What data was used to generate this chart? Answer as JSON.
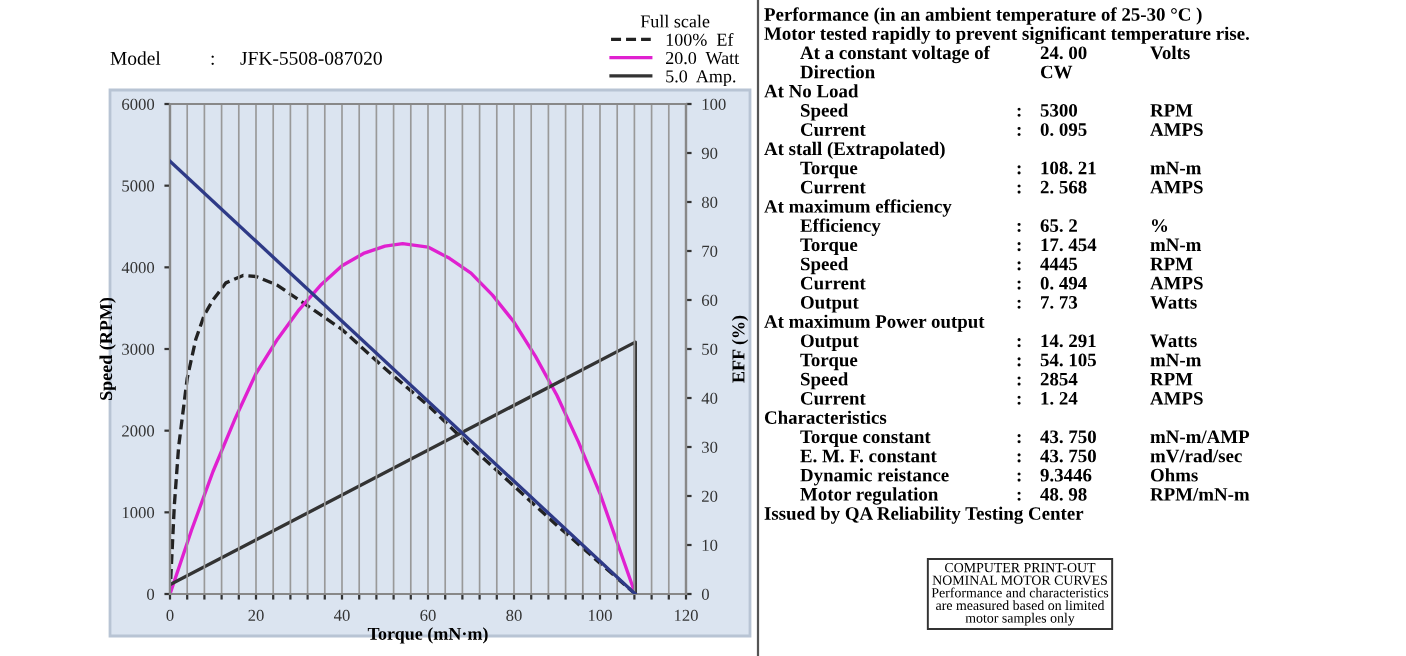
{
  "chart_data": {
    "type": "line",
    "subtitle": "Model\t:\tJFK-5508-087020",
    "xlabel": "Torque (mN·m)",
    "ylabel": "Speed (RPM)",
    "y2label": "EFF (%)",
    "legend_title": "Full scale",
    "legend": "top right",
    "grid": "x",
    "xlim": [
      0,
      120
    ],
    "xticks": [
      0,
      {
        "value": 4,
        "label": null
      },
      {
        "value": 8,
        "label": null
      },
      {
        "value": 12,
        "label": null
      },
      {
        "value": 16,
        "label": null
      },
      20,
      {
        "value": 24,
        "label": null
      },
      {
        "value": 28,
        "label": null
      },
      {
        "value": 32,
        "label": null
      },
      {
        "value": 36,
        "label": null
      },
      40,
      {
        "value": 44,
        "label": null
      },
      {
        "value": 48,
        "label": null
      },
      {
        "value": 52,
        "label": null
      },
      {
        "value": 56,
        "label": null
      },
      60,
      {
        "value": 64,
        "label": null
      },
      {
        "value": 68,
        "label": null
      },
      {
        "value": 72,
        "label": null
      },
      {
        "value": 76,
        "label": null
      },
      80,
      {
        "value": 84,
        "label": null
      },
      {
        "value": 88,
        "label": null
      },
      {
        "value": 92,
        "label": null
      },
      {
        "value": 96,
        "label": null
      },
      100,
      {
        "value": 104,
        "label": null
      },
      {
        "value": 108,
        "label": null
      },
      {
        "value": 112,
        "label": null
      },
      {
        "value": 116,
        "label": null
      },
      120
    ],
    "ylim": [
      0,
      6000
    ],
    "yticks": [
      0,
      1000,
      2000,
      3000,
      4000,
      5000,
      6000
    ],
    "y2lim": [
      0,
      100
    ],
    "y2ticks": [
      0,
      10,
      20,
      30,
      40,
      50,
      60,
      70,
      80,
      90,
      100
    ],
    "series": [
      {
        "color": "#2e3a87",
        "line_style": "solid",
        "x": [
          0,
          108.21
        ],
        "values": [
          5300,
          0
        ]
      },
      {
        "name": "100%  Ef",
        "axis": "y2",
        "color": "#222222",
        "line_style": "dashed",
        "x": [
          0,
          1,
          2,
          4,
          6,
          8,
          10,
          13,
          17,
          20,
          25,
          30,
          35,
          40,
          50,
          60,
          70,
          80,
          90,
          100,
          108.21
        ],
        "values": [
          0,
          18,
          30,
          44,
          52,
          57,
          60,
          63.5,
          65,
          64.8,
          63,
          60,
          57,
          54,
          46,
          38.5,
          30,
          22,
          14,
          6.3,
          0
        ]
      },
      {
        "name": "20.0  Watt",
        "axis": "y2",
        "color": "#e020d0",
        "line_style": "solid",
        "x": [
          0,
          5,
          10,
          15,
          20,
          25,
          30,
          35,
          40,
          45,
          50,
          54.1,
          60,
          65,
          70,
          75,
          80,
          85,
          90,
          95,
          100,
          105,
          108.21
        ],
        "values": [
          0,
          13,
          25,
          35.5,
          45,
          52,
          58,
          63,
          67,
          69.5,
          71,
          71.5,
          70.8,
          68.5,
          65.5,
          61,
          55.5,
          48.5,
          40.5,
          31,
          20.5,
          8,
          0
        ]
      },
      {
        "name": "5.0  Amp.",
        "axis": "y2",
        "color": "#333333",
        "line_style": "solid",
        "x": [
          0,
          108.21,
          108.21
        ],
        "values": [
          1.9,
          51.4,
          0
        ]
      }
    ],
    "annotations": [
      "Performance (in an ambient temperature of 25-30 °C )",
      "Motor tested rapidly to prevent significant temperature rise.",
      "At a constant voltage of\t\t24. 00\tVolts",
      "Direction\t\tCW",
      "At No Load",
      "Speed\t:\t5300\tRPM",
      "Current\t:\t0. 095\tAMPS",
      "At stall (Extrapolated)",
      "Torque\t:\t108. 21\tmN-m",
      "Current\t:\t2. 568\tAMPS",
      "At maximum efficiency",
      "Efficiency\t:\t65. 2\t%",
      "Torque\t:\t17. 454\tmN-m",
      "Speed\t:\t4445\tRPM",
      "Current\t:\t0. 494\tAMPS",
      "Output\t:\t7. 73\tWatts",
      "At maximum Power output",
      "Output\t:\t14. 291\tWatts",
      "Torque\t:\t54. 105\tmN-m",
      "Speed\t:\t2854\tRPM",
      "Current\t:\t1. 24\tAMPS",
      "Characteristics",
      "Torque constant\t:\t43. 750\tmN-m/AMP",
      "E. M. F. constant\t:\t43. 750\tmV/rad/sec",
      "Dynamic reistance\t:\t9.3446\tOhms",
      "Motor regulation\t:\t48. 98\tRPM/mN-m",
      "Issued by QA Reliability Testing Center",
      "COMPUTER PRINT-OUT\nNOMINAL MOTOR CURVES\nPerformance and characteristics\nare measured based on limited\nmotor samples only"
    ]
  }
}
